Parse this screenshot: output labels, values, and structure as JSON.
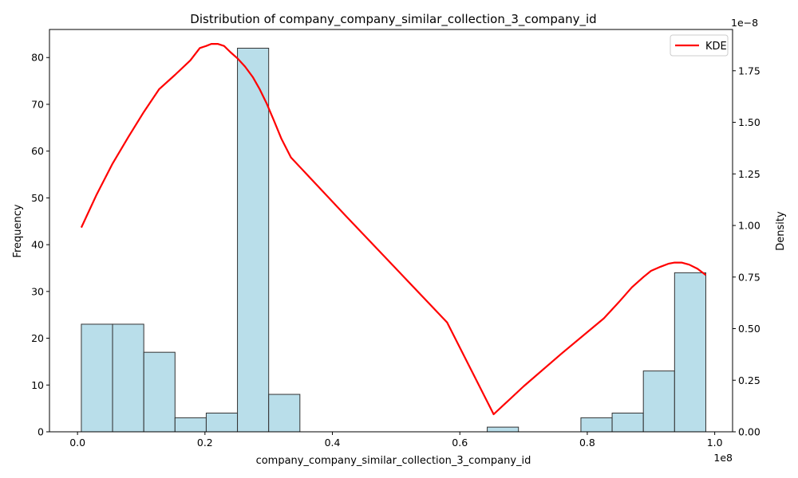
{
  "chart_data": {
    "type": "bar",
    "title": "Distribution of company_company_similar_collection_3_company_id",
    "xlabel": "company_company_similar_collection_3_company_id",
    "ylabel": "Frequency",
    "y2label": "Density",
    "x_offset_text": "1e8",
    "y2_offset_text": "1e−8",
    "xlim": [
      -4400000,
      102800000
    ],
    "ylim": [
      0,
      86
    ],
    "y2lim": [
      0,
      1.95
    ],
    "xticks": [
      0,
      20000000,
      40000000,
      60000000,
      80000000,
      100000000
    ],
    "xtick_labels": [
      "0.0",
      "0.2",
      "0.4",
      "0.6",
      "0.8",
      "1.0"
    ],
    "yticks": [
      0,
      10,
      20,
      30,
      40,
      50,
      60,
      70,
      80
    ],
    "yticks_labels": [
      "0",
      "10",
      "20",
      "30",
      "40",
      "50",
      "60",
      "70",
      "80"
    ],
    "y2ticks": [
      0,
      0.25,
      0.5,
      0.75,
      1.0,
      1.25,
      1.5,
      1.75
    ],
    "y2tick_labels": [
      "0.00",
      "0.25",
      "0.50",
      "0.75",
      "1.00",
      "1.25",
      "1.50",
      "1.75"
    ],
    "grid": false,
    "legend_position": "top-right",
    "bin_edges": [
      600000,
      5500000,
      10400000,
      15300000,
      20200000,
      25100000,
      30000000,
      34900000,
      39800000,
      44700000,
      49600000,
      54500000,
      59400000,
      64300000,
      69200000,
      74100000,
      79000000,
      83900000,
      88800000,
      93700000,
      98600000
    ],
    "counts": [
      23,
      23,
      17,
      3,
      4,
      82,
      8,
      0,
      0,
      0,
      0,
      0,
      0,
      1,
      0,
      0,
      3,
      4,
      13,
      34
    ],
    "series": [
      {
        "name": "KDE",
        "color": "#ff0000",
        "x": [
          600000,
          3000000,
          5500000,
          8000000,
          10400000,
          12800000,
          15300000,
          17700000,
          19200000,
          20200000,
          21000000,
          22000000,
          23000000,
          24000000,
          25100000,
          26300000,
          27500000,
          28600000,
          29700000,
          30800000,
          32000000,
          33500000,
          42000000,
          50000000,
          58000000,
          65300000,
          70000000,
          76000000,
          82600000,
          85000000,
          87000000,
          88800000,
          90000000,
          91500000,
          92800000,
          93700000,
          94800000,
          96000000,
          97300000,
          98600000
        ],
        "y": [
          0.99,
          1.15,
          1.3,
          1.43,
          1.55,
          1.66,
          1.73,
          1.8,
          1.86,
          1.87,
          1.88,
          1.88,
          1.87,
          1.84,
          1.81,
          1.77,
          1.72,
          1.66,
          1.59,
          1.51,
          1.42,
          1.33,
          1.05,
          0.79,
          0.53,
          0.085,
          0.22,
          0.38,
          0.55,
          0.63,
          0.7,
          0.75,
          0.78,
          0.8,
          0.815,
          0.82,
          0.82,
          0.81,
          0.79,
          0.76
        ]
      }
    ],
    "bar_color": "#add8e6",
    "bar_edge_color": "#333333"
  }
}
